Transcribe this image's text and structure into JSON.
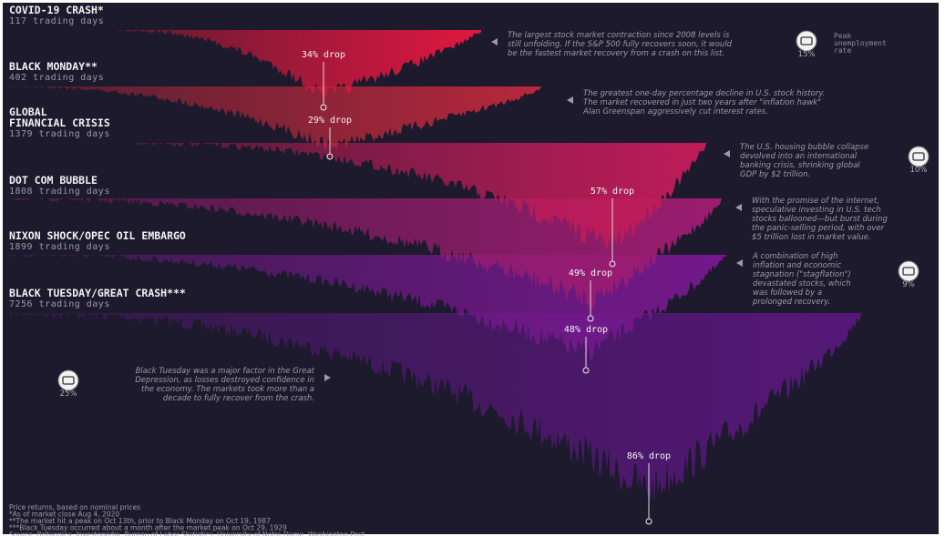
{
  "crashes": [
    {
      "name": [
        "COVID-19 CRASH*"
      ],
      "days": "117 trading days",
      "drop": "34% drop",
      "description": [
        "The largest stock market contraction since 2008 levels is",
        "still unfolding. If the S&P 500 fully recovers soon, it would",
        "be the fastest market recovery from a crash on this list."
      ],
      "unemployment": "15%"
    },
    {
      "name": [
        "BLACK MONDAY**"
      ],
      "days": "402 trading days",
      "drop": "29% drop",
      "description": [
        "The greatest one-day percentage decline in U.S. stock history.",
        "The market recovered in just two years after \"inflation hawk\"",
        "Alan Greenspan aggressively cut interest rates."
      ]
    },
    {
      "name": [
        "GLOBAL",
        "FINANCIAL CRISIS"
      ],
      "days": "1379 trading days",
      "drop": "57% drop",
      "description": [
        "The U.S. housing bubble collapse",
        "devolved into an international",
        "banking crisis, shrinking global",
        "GDP by $2 trillion."
      ],
      "unemployment": "10%"
    },
    {
      "name": [
        "DOT COM BUBBLE"
      ],
      "days": "1808 trading days",
      "drop": "49% drop",
      "description": [
        "With the promise of the internet,",
        "speculative investing in U.S. tech",
        "stocks ballooned—but burst during",
        "the panic-selling period, with over",
        "$5 trillion lost in market value."
      ]
    },
    {
      "name": [
        "NIXON SHOCK/OPEC OIL EMBARGO"
      ],
      "days": "1899 trading days",
      "drop": "48% drop",
      "description": [
        "A combination of high",
        "inflation and economic",
        "stagnation (\"stagflation\")",
        "devastated stocks, which",
        "was followed by a",
        "prolonged recovery."
      ],
      "unemployment": "9%"
    },
    {
      "name": [
        "BLACK TUESDAY/GREAT CRASH***"
      ],
      "days": "7256 trading days",
      "drop": "86% drop",
      "description": [
        "Black Tuesday was a major factor in the Great",
        "Depression, as losses destroyed confidence in",
        "the economy. The markets took more than a",
        "decade to fully recover from the crash."
      ],
      "unemployment": "25%"
    }
  ],
  "legend": [
    "Peak",
    "unemployment",
    "rate"
  ],
  "footnotes": [
    "Price returns, based on nominal prices",
    "*As of market close Aug 4, 2020",
    "**The market hit a peak on Oct 13th, prior to Black Monday on Oct 19, 1987",
    "***Black Tuesday occurred about a month after the market peak on Oct 29, 1929",
    "Source: Britannica, Investopedia, Bureau of Labor Statistics, University of Notre Dame, Washington Post"
  ]
}
